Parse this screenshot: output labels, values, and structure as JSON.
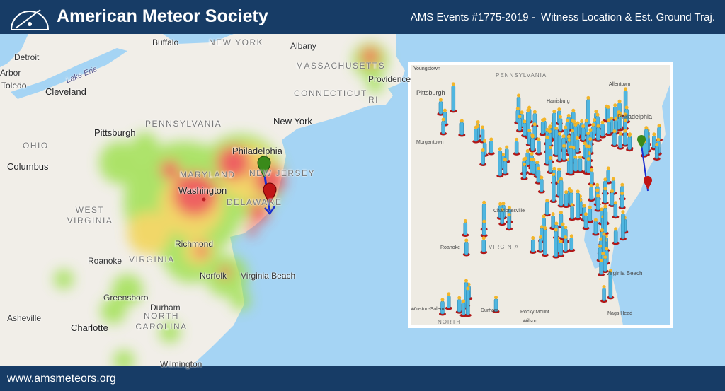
{
  "header": {
    "title": "American Meteor Society",
    "event": "AMS Events #1775-2019 -  Witness Location & Est. Ground Traj."
  },
  "map": {
    "labels": [
      "Detroit",
      "Arbor",
      "Toledo",
      "Lake Erie",
      "Cleveland",
      "Buffalo",
      "NEW YORK",
      "Albany",
      "MASSACHUSETTS",
      "Providence",
      "RI",
      "CONNECTICUT",
      "New York",
      "Pittsburgh",
      "PENNSYLVANIA",
      "OHIO",
      "Columbus",
      "Philadelphia",
      "NEW JERSEY",
      "MARYLAND",
      "Washington",
      "DELAWARE",
      "WEST VIRGINIA",
      "Richmond",
      "Roanoke",
      "VIRGINIA",
      "Norfolk",
      "Virginia Beach",
      "Greensboro",
      "Durham",
      "NORTH CAROLINA",
      "Charlotte",
      "Asheville",
      "Wilmington"
    ]
  },
  "inset": {
    "labels": [
      "Youngstown",
      "PENNSYLVANIA",
      "Allentown",
      "Pittsburgh",
      "Harrisburg",
      "Philadelphia",
      "Morgantown",
      "Charlottesville",
      "VIRGINIA",
      "Roanoke",
      "Virginia Beach",
      "Rocky Mount",
      "Winston-Salem",
      "Durham",
      "NORTH",
      "Wilson",
      "Nags Head"
    ]
  },
  "footer": {
    "url": "www.amsmeteors.org"
  }
}
